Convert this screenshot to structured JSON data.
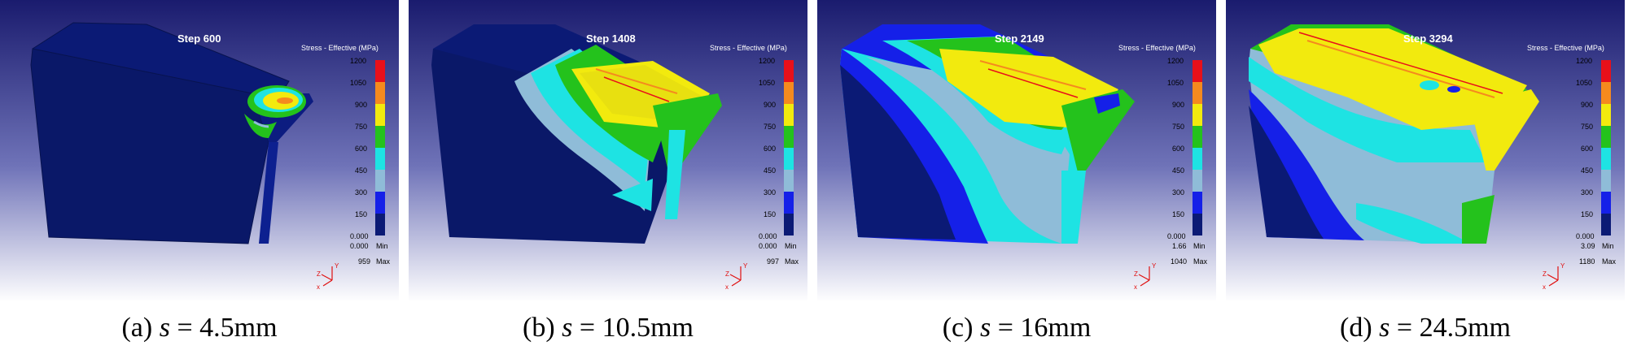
{
  "legend_title": "Stress - Effective (MPa)",
  "legend_ticks": [
    "1200",
    "1050",
    "900",
    "750",
    "600",
    "450",
    "300",
    "150",
    "0.000"
  ],
  "min_label": "Min",
  "max_label": "Max",
  "axis_letters": {
    "x": "x",
    "y": "Y",
    "z": "Z"
  },
  "colors": {
    "band_1200": "#e8101a",
    "band_1050": "#f58a1e",
    "band_900": "#f2ea0e",
    "band_750": "#24c21c",
    "band_600": "#1ee3e3",
    "band_450": "#8fbcd8",
    "band_300": "#1520e8",
    "band_150": "#0b1a75"
  },
  "panels": [
    {
      "id": "a",
      "step": "Step 600",
      "min_value": "0.000",
      "max_value": "959",
      "caption_prefix": "(a)",
      "caption_var": "s",
      "caption_rest": "= 4.5mm"
    },
    {
      "id": "b",
      "step": "Step 1408",
      "min_value": "0.000",
      "max_value": "997",
      "caption_prefix": "(b)",
      "caption_var": "s",
      "caption_rest": "= 10.5mm"
    },
    {
      "id": "c",
      "step": "Step 2149",
      "min_value": "1.66",
      "max_value": "1040",
      "caption_prefix": "(c)",
      "caption_var": "s",
      "caption_rest": "= 16mm"
    },
    {
      "id": "d",
      "step": "Step 3294",
      "min_value": "3.09",
      "max_value": "1180",
      "caption_prefix": "(d)",
      "caption_var": "s",
      "caption_rest": "= 24.5mm"
    }
  ]
}
